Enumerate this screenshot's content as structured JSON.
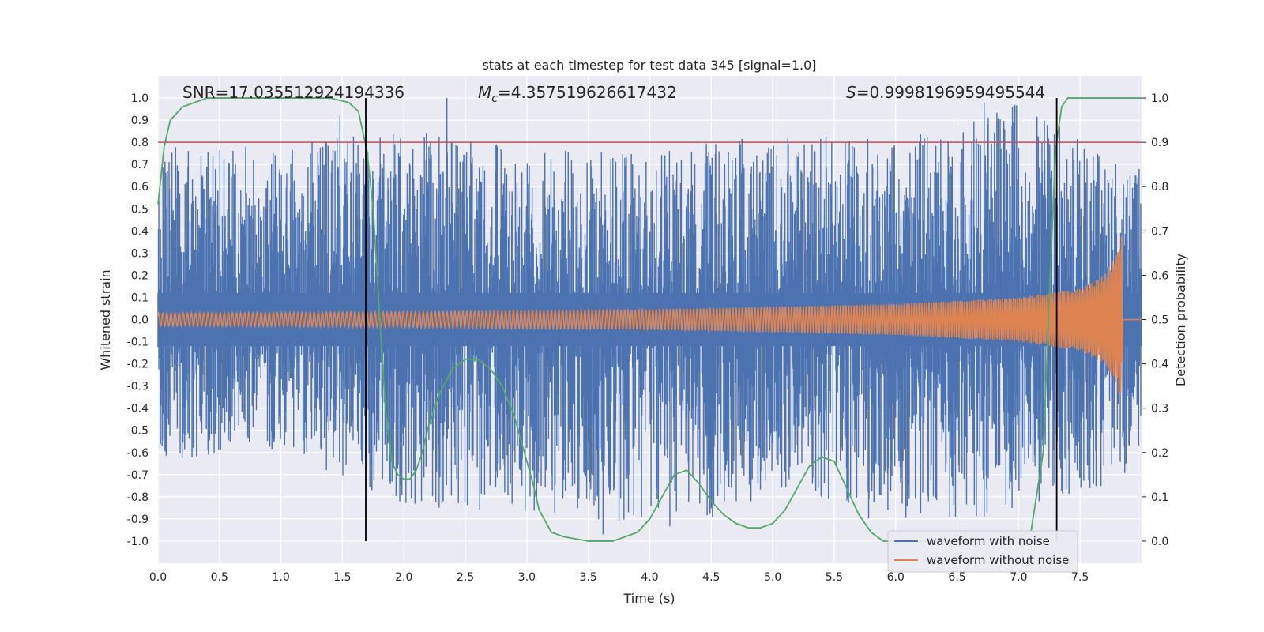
{
  "chart_data": {
    "type": "line",
    "title": "stats at each timestep for test data 345 [signal=1.0]",
    "xlabel": "Time (s)",
    "ylabel": "Whitened strain",
    "y2label": "Detection probability",
    "xlim": [
      0.0,
      8.0
    ],
    "ylim": [
      -1.1,
      1.1
    ],
    "y2lim": [
      -0.05,
      1.05
    ],
    "xticks": [
      "0.0",
      "0.5",
      "1.0",
      "1.5",
      "2.0",
      "2.5",
      "3.0",
      "3.5",
      "4.0",
      "4.5",
      "5.0",
      "5.5",
      "6.0",
      "6.5",
      "7.0",
      "7.5"
    ],
    "yticks": [
      "1.0",
      "0.9",
      "0.8",
      "0.7",
      "0.6",
      "0.5",
      "0.4",
      "0.3",
      "0.2",
      "0.1",
      "0.0",
      "-0.1",
      "-0.2",
      "-0.3",
      "-0.4",
      "-0.5",
      "-0.6",
      "-0.7",
      "-0.8",
      "-0.9",
      "-1.0"
    ],
    "y2ticks": [
      "1.0",
      "0.9",
      "0.8",
      "0.7",
      "0.6",
      "0.5",
      "0.4",
      "0.3",
      "0.2",
      "0.1",
      "0.0"
    ],
    "grid": true,
    "legend_position": "lower-right",
    "annotations": {
      "snr": "SNR=17.035512924194336",
      "mc": "M_c=4.357519626617432",
      "mc_symbol": "M",
      "mc_subscript": "c",
      "mc_value": "=4.357519626617432",
      "s_symbol": "S",
      "s_value": "=0.9998196959495544"
    },
    "threshold": 0.9,
    "vertical_markers": [
      1.69,
      7.31
    ],
    "series": [
      {
        "name": "waveform with noise",
        "color": "#4c72b0",
        "envelope": {
          "x": [
            0.0,
            1.0,
            2.0,
            3.0,
            4.0,
            5.0,
            6.0,
            7.0,
            7.8,
            8.0
          ],
          "upper": [
            0.78,
            0.79,
            0.86,
            0.77,
            0.75,
            0.85,
            0.81,
            0.98,
            0.72,
            0.68
          ],
          "lower": [
            -0.64,
            -0.58,
            -0.85,
            -0.87,
            -0.97,
            -0.82,
            -0.92,
            -0.88,
            -0.76,
            -0.57
          ]
        },
        "spike_peaks": [
          {
            "x": 1.48,
            "y": 0.92
          },
          {
            "x": 2.35,
            "y": 1.0
          },
          {
            "x": 6.72,
            "y": 0.98
          },
          {
            "x": 3.62,
            "y": -0.97
          },
          {
            "x": 6.72,
            "y": -0.89
          }
        ]
      },
      {
        "name": "waveform without noise",
        "color": "#dd8452",
        "amplitude_x": [
          0.0,
          2.0,
          4.0,
          6.0,
          7.0,
          7.5,
          7.7,
          7.8,
          7.84,
          7.85,
          8.0
        ],
        "amplitude": [
          0.03,
          0.035,
          0.045,
          0.07,
          0.1,
          0.14,
          0.2,
          0.3,
          0.38,
          0.0,
          0.0
        ]
      },
      {
        "name": "detection probability",
        "color": "#55a868",
        "axis": "right",
        "x": [
          0.0,
          0.05,
          0.1,
          0.2,
          0.3,
          0.4,
          0.6,
          1.0,
          1.4,
          1.55,
          1.63,
          1.7,
          1.75,
          1.8,
          1.85,
          1.9,
          1.95,
          2.0,
          2.05,
          2.1,
          2.15,
          2.2,
          2.3,
          2.4,
          2.5,
          2.6,
          2.7,
          2.8,
          2.9,
          3.0,
          3.05,
          3.1,
          3.2,
          3.3,
          3.5,
          3.7,
          3.8,
          3.9,
          4.0,
          4.1,
          4.2,
          4.3,
          4.4,
          4.5,
          4.6,
          4.7,
          4.8,
          4.9,
          5.0,
          5.1,
          5.2,
          5.3,
          5.4,
          5.5,
          5.6,
          5.7,
          5.8,
          5.9,
          6.0,
          6.5,
          7.0,
          7.1,
          7.2,
          7.25,
          7.3,
          7.35,
          7.4,
          7.5,
          7.6,
          8.0
        ],
        "y": [
          0.76,
          0.89,
          0.95,
          0.98,
          0.99,
          1.0,
          1.0,
          1.0,
          1.0,
          0.99,
          0.97,
          0.88,
          0.75,
          0.52,
          0.3,
          0.18,
          0.15,
          0.14,
          0.14,
          0.16,
          0.2,
          0.26,
          0.34,
          0.39,
          0.41,
          0.41,
          0.39,
          0.35,
          0.28,
          0.18,
          0.13,
          0.07,
          0.02,
          0.01,
          0.0,
          0.0,
          0.01,
          0.02,
          0.05,
          0.1,
          0.15,
          0.16,
          0.13,
          0.09,
          0.06,
          0.04,
          0.03,
          0.03,
          0.04,
          0.07,
          0.12,
          0.17,
          0.19,
          0.18,
          0.12,
          0.06,
          0.02,
          0.0,
          0.0,
          0.0,
          0.01,
          0.02,
          0.2,
          0.55,
          0.88,
          0.98,
          1.0,
          1.0,
          1.0,
          1.0
        ]
      }
    ],
    "colors": {
      "plot_background": "#eaeaf2",
      "grid": "#ffffff",
      "threshold_line": "#c44e52",
      "markers": "#000000"
    }
  }
}
